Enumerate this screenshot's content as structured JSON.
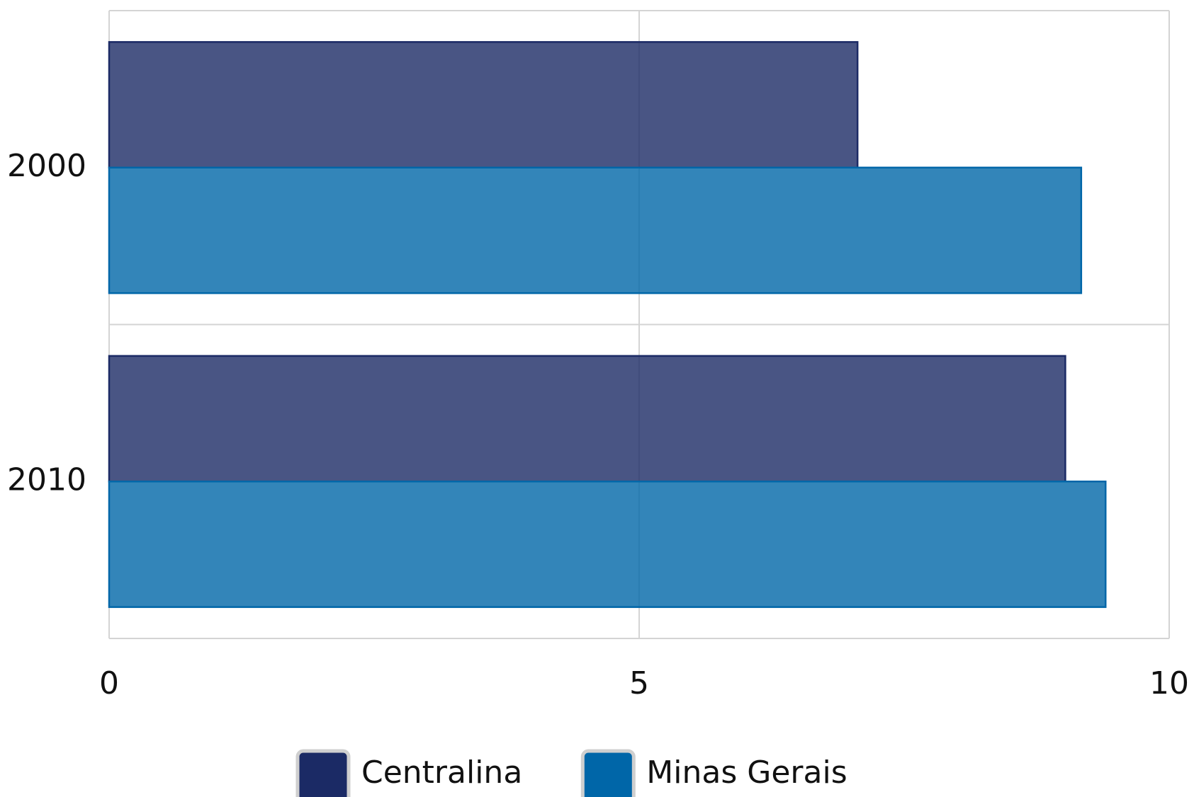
{
  "chart_data": {
    "type": "hbar",
    "categories": [
      "2000",
      "2010"
    ],
    "series": [
      {
        "name": "Centralina",
        "color": "#1b2a65",
        "values": [
          7.06,
          9.02
        ]
      },
      {
        "name": "Minas Gerais",
        "color": "#0066a8",
        "values": [
          9.17,
          9.4
        ]
      }
    ],
    "xlim": [
      0,
      10
    ],
    "xticks": [
      0,
      5,
      10
    ],
    "grid": true,
    "legend": "bottom"
  }
}
